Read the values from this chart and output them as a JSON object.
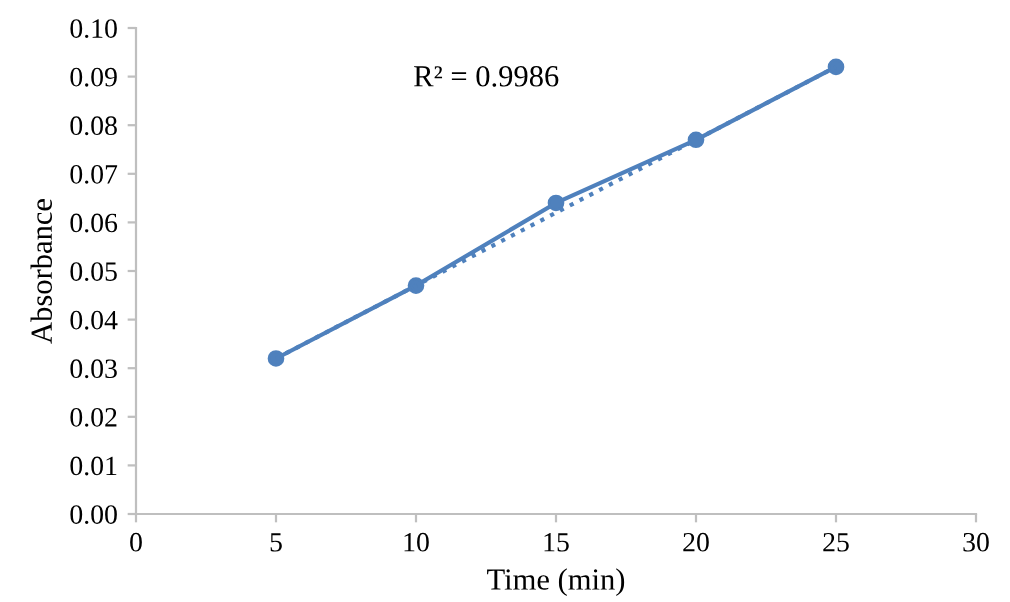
{
  "chart_data": {
    "type": "line",
    "xlabel": "Time (min)",
    "ylabel": "Absorbance",
    "x": [
      5,
      10,
      15,
      20,
      25
    ],
    "series": [
      {
        "color": "#4f81bd",
        "values": [
          0.032,
          0.047,
          0.064,
          0.077,
          0.092
        ],
        "marker": "circle",
        "line_style": "solid"
      },
      {
        "type": "line",
        "x": [
          5,
          25
        ],
        "color": "#4f81bd",
        "values": [
          0.032,
          0.092
        ],
        "marker": "none",
        "line_style": "dotted"
      }
    ],
    "xlim": [
      0,
      30
    ],
    "xticks": [
      0,
      5,
      10,
      15,
      20,
      25,
      30
    ],
    "ylim": [
      0,
      0.1
    ],
    "yticks": [
      {
        "value": 0,
        "label": "0.00"
      },
      {
        "value": 0.01,
        "label": "0.01"
      },
      {
        "value": 0.02,
        "label": "0.02"
      },
      {
        "value": 0.03,
        "label": "0.03"
      },
      {
        "value": 0.04,
        "label": "0.04"
      },
      {
        "value": 0.05,
        "label": "0.05"
      },
      {
        "value": 0.06,
        "label": "0.06"
      },
      {
        "value": 0.07,
        "label": "0.07"
      },
      {
        "value": 0.08,
        "label": "0.08"
      },
      {
        "value": 0.09,
        "label": "0.09"
      },
      {
        "value": 0.1,
        "label": "0.10"
      }
    ],
    "grid": false,
    "legend": false,
    "annotations": [
      "R² = 0.9986"
    ]
  }
}
